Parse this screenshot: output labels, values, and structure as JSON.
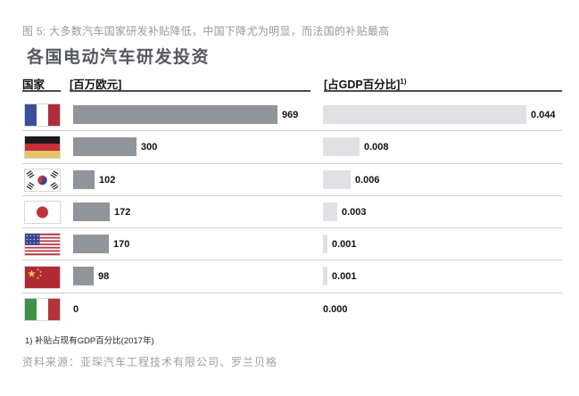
{
  "caption": "图 5: 大多数汽车国家研发补贴降低，中国下降尤为明显，而法国的补贴最高",
  "headers": {
    "country": "国家",
    "euro": "[百万欧元]",
    "gdp": "[占GDP百分比]",
    "gdp_footnote_marker": "1)"
  },
  "footnote": "1) 补贴占现有GDP百分比(2017年)",
  "source": "资料来源：亚琛汽车工程技术有限公司、罗兰贝格",
  "colors": {
    "background": "#ffffff",
    "euro_bar": "#8f959a",
    "gdp_bar": "#dfe1e4",
    "title_text": "#55585c",
    "caption_text": "#96999d",
    "source_text": "#9aa0a6",
    "header_text": "#131313",
    "value_text": "#111111",
    "header_rule": "#4a4b4d",
    "row_separator": "#cbced1"
  },
  "chart_data": {
    "type": "bar",
    "title": "各国电动汽车研发投资",
    "subtitle": "图 5: 大多数汽车国家研发补贴降低，中国下降尤为明显，而法国的补贴最高",
    "categories": [
      "France",
      "Germany",
      "South Korea",
      "Japan",
      "USA",
      "China",
      "Italy"
    ],
    "series": [
      {
        "name": "[百万欧元]",
        "values": [
          969,
          300,
          102,
          172,
          170,
          98,
          0
        ],
        "axis_max": 969
      },
      {
        "name": "[占GDP百分比]",
        "values": [
          0.044,
          0.008,
          0.006,
          0.003,
          0.001,
          0.001,
          0.0
        ],
        "axis_max": 0.044
      }
    ],
    "rows": [
      {
        "country": "France",
        "flag": "fr",
        "euro_label": "969",
        "gdp_label": "0.044"
      },
      {
        "country": "Germany",
        "flag": "de",
        "euro_label": "300",
        "gdp_label": "0.008"
      },
      {
        "country": "South Korea",
        "flag": "kr",
        "euro_label": "102",
        "gdp_label": "0.006"
      },
      {
        "country": "Japan",
        "flag": "jp",
        "euro_label": "172",
        "gdp_label": "0.003"
      },
      {
        "country": "USA",
        "flag": "us",
        "euro_label": "170",
        "gdp_label": "0.001"
      },
      {
        "country": "China",
        "flag": "cn",
        "euro_label": "98",
        "gdp_label": "0.001"
      },
      {
        "country": "Italy",
        "flag": "it",
        "euro_label": "0",
        "gdp_label": "0.000"
      }
    ],
    "legend": "none",
    "grid": "row-separators-only",
    "footnote": "1) 补贴占现有GDP百分比(2017年)",
    "source": "资料来源：亚琛汽车工程技术有限公司、罗兰贝格"
  }
}
